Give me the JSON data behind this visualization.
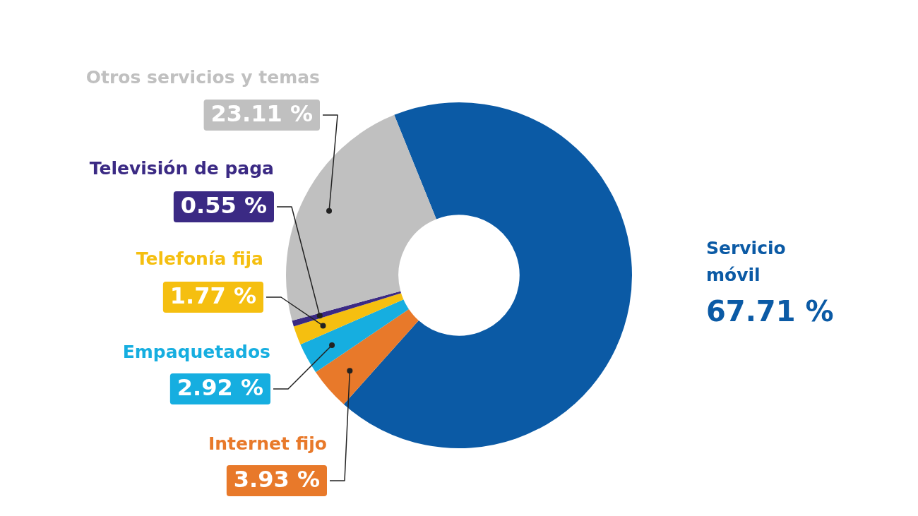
{
  "chart_data": {
    "type": "donut",
    "categories": [
      "Servicio móvil",
      "Internet fijo",
      "Empaquetados",
      "Telefonía fija",
      "Televisión de paga",
      "Otros servicios y temas"
    ],
    "values": [
      67.71,
      3.93,
      2.92,
      1.77,
      0.55,
      23.11
    ],
    "colors": [
      "#0b5aa5",
      "#e8792a",
      "#16aee0",
      "#f5bf10",
      "#3b2a84",
      "#c0c0c0"
    ],
    "value_labels": [
      "67.71 %",
      "3.93 %",
      "2.92 %",
      "1.77 %",
      "0.55 %",
      "23.11 %"
    ],
    "legend": false
  }
}
